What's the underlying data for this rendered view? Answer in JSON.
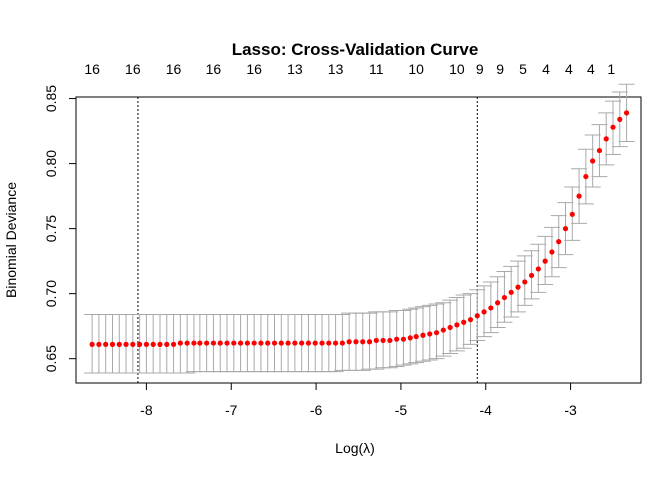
{
  "chart_data": {
    "type": "scatter",
    "title": "Lasso: Cross-Validation Curve",
    "xlabel": "Log(λ)",
    "ylabel": "Binomial Deviance",
    "xlim": [
      -8.83,
      -2.17
    ],
    "ylim": [
      0.6313,
      0.8512
    ],
    "x_ticks": [
      -8,
      -7,
      -6,
      -5,
      -4,
      -3
    ],
    "x_tick_labels": [
      "-8",
      "-7",
      "-6",
      "-5",
      "-4",
      "-3"
    ],
    "y_ticks": [
      0.65,
      0.7,
      0.75,
      0.8,
      0.85
    ],
    "y_tick_labels": [
      "0.65",
      "0.70",
      "0.75",
      "0.80",
      "0.85"
    ],
    "top_axis": {
      "label_positions": [
        -8.64,
        -8.16,
        -7.68,
        -7.21,
        -6.73,
        -6.25,
        -5.77,
        -5.29,
        -4.82,
        -4.34,
        -4.07,
        -3.83,
        -3.56,
        -3.29,
        -3.02,
        -2.76,
        -2.52
      ],
      "labels": [
        "16",
        "16",
        "16",
        "16",
        "16",
        "13",
        "13",
        "11",
        "10",
        "10",
        "9",
        "9",
        "5",
        "4",
        "4",
        "4",
        "1"
      ]
    },
    "vlines": [
      -8.1,
      -4.1
    ],
    "series": [
      {
        "name": "cv_mean",
        "color": "#ff0000",
        "errorbar_color": "#a9a9a9",
        "x": [
          -8.64,
          -8.56,
          -8.48,
          -8.4,
          -8.32,
          -8.24,
          -8.16,
          -8.08,
          -8.0,
          -7.92,
          -7.84,
          -7.76,
          -7.68,
          -7.6,
          -7.52,
          -7.44,
          -7.37,
          -7.29,
          -7.21,
          -7.13,
          -7.05,
          -6.97,
          -6.89,
          -6.81,
          -6.73,
          -6.65,
          -6.57,
          -6.49,
          -6.41,
          -6.33,
          -6.25,
          -6.17,
          -6.09,
          -6.01,
          -5.93,
          -5.85,
          -5.77,
          -5.69,
          -5.61,
          -5.53,
          -5.45,
          -5.37,
          -5.29,
          -5.21,
          -5.13,
          -5.05,
          -4.97,
          -4.89,
          -4.82,
          -4.74,
          -4.66,
          -4.58,
          -4.5,
          -4.42,
          -4.34,
          -4.26,
          -4.18,
          -4.1,
          -4.02,
          -3.94,
          -3.86,
          -3.78,
          -3.7,
          -3.62,
          -3.54,
          -3.46,
          -3.38,
          -3.3,
          -3.22,
          -3.14,
          -3.06,
          -2.98,
          -2.9,
          -2.82,
          -2.74,
          -2.66,
          -2.58,
          -2.5,
          -2.42,
          -2.34
        ],
        "y": [
          0.661,
          0.661,
          0.661,
          0.661,
          0.661,
          0.661,
          0.661,
          0.661,
          0.661,
          0.661,
          0.661,
          0.661,
          0.661,
          0.662,
          0.662,
          0.662,
          0.662,
          0.662,
          0.662,
          0.662,
          0.662,
          0.662,
          0.662,
          0.662,
          0.662,
          0.662,
          0.662,
          0.662,
          0.662,
          0.662,
          0.662,
          0.662,
          0.662,
          0.662,
          0.662,
          0.662,
          0.662,
          0.662,
          0.663,
          0.663,
          0.663,
          0.663,
          0.664,
          0.664,
          0.664,
          0.665,
          0.665,
          0.666,
          0.667,
          0.668,
          0.669,
          0.67,
          0.672,
          0.674,
          0.676,
          0.678,
          0.68,
          0.683,
          0.686,
          0.689,
          0.693,
          0.697,
          0.701,
          0.705,
          0.709,
          0.714,
          0.719,
          0.725,
          0.732,
          0.74,
          0.75,
          0.761,
          0.775,
          0.79,
          0.802,
          0.81,
          0.819,
          0.828,
          0.834,
          0.839
        ],
        "lower": [
          0.639,
          0.639,
          0.639,
          0.639,
          0.639,
          0.639,
          0.639,
          0.639,
          0.639,
          0.639,
          0.639,
          0.639,
          0.639,
          0.639,
          0.639,
          0.64,
          0.64,
          0.64,
          0.64,
          0.64,
          0.64,
          0.64,
          0.64,
          0.64,
          0.64,
          0.64,
          0.64,
          0.64,
          0.64,
          0.64,
          0.64,
          0.64,
          0.64,
          0.64,
          0.64,
          0.64,
          0.64,
          0.641,
          0.641,
          0.641,
          0.641,
          0.642,
          0.642,
          0.643,
          0.643,
          0.644,
          0.645,
          0.646,
          0.647,
          0.648,
          0.649,
          0.65,
          0.652,
          0.654,
          0.656,
          0.658,
          0.661,
          0.664,
          0.667,
          0.67,
          0.674,
          0.678,
          0.682,
          0.686,
          0.691,
          0.696,
          0.701,
          0.707,
          0.713,
          0.72,
          0.73,
          0.741,
          0.754,
          0.769,
          0.782,
          0.79,
          0.799,
          0.807,
          0.813,
          0.817
        ],
        "upper": [
          0.684,
          0.684,
          0.684,
          0.684,
          0.684,
          0.684,
          0.684,
          0.684,
          0.684,
          0.684,
          0.684,
          0.684,
          0.684,
          0.684,
          0.684,
          0.684,
          0.684,
          0.684,
          0.684,
          0.684,
          0.684,
          0.684,
          0.684,
          0.684,
          0.684,
          0.684,
          0.684,
          0.684,
          0.684,
          0.684,
          0.684,
          0.684,
          0.684,
          0.684,
          0.684,
          0.684,
          0.684,
          0.684,
          0.685,
          0.685,
          0.685,
          0.685,
          0.686,
          0.686,
          0.686,
          0.687,
          0.687,
          0.688,
          0.689,
          0.69,
          0.691,
          0.692,
          0.693,
          0.695,
          0.697,
          0.699,
          0.7,
          0.703,
          0.706,
          0.709,
          0.713,
          0.717,
          0.721,
          0.725,
          0.729,
          0.733,
          0.738,
          0.744,
          0.751,
          0.76,
          0.77,
          0.782,
          0.796,
          0.811,
          0.822,
          0.83,
          0.839,
          0.848,
          0.855,
          0.861
        ]
      }
    ]
  }
}
